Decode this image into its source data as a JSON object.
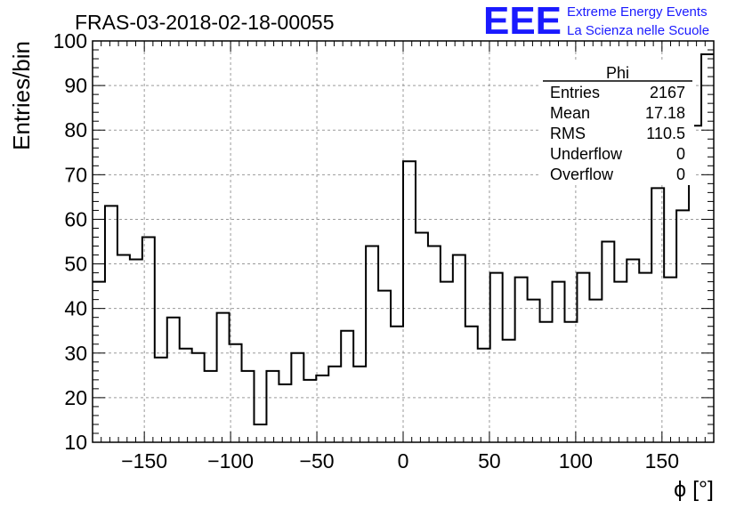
{
  "title": "FRAS-03-2018-02-18-00055",
  "logo": {
    "mark": "EEE",
    "line1": "Extreme Energy Events",
    "line2": "La Scienza nelle Scuole",
    "color": "#1a1aff"
  },
  "stats_box": {
    "name": "Phi",
    "rows": [
      {
        "label": "Entries",
        "value": "2167"
      },
      {
        "label": "Mean",
        "value": "17.18"
      },
      {
        "label": "RMS",
        "value": "110.5"
      },
      {
        "label": "Underflow",
        "value": "0"
      },
      {
        "label": "Overflow",
        "value": "0"
      }
    ]
  },
  "chart_data": {
    "type": "histogram",
    "title": "FRAS-03-2018-02-18-00055",
    "xlabel": "ϕ [°]",
    "ylabel": "Entries/bin",
    "xlim": [
      -180,
      180
    ],
    "ylim": [
      10,
      100
    ],
    "bin_width": 7.2,
    "bin_edges_start": -180,
    "xticks": [
      -150,
      -100,
      -50,
      0,
      50,
      100,
      150
    ],
    "yticks": [
      10,
      20,
      30,
      40,
      50,
      60,
      70,
      80,
      90,
      100
    ],
    "grid": true,
    "values": [
      46,
      63,
      52,
      51,
      56,
      29,
      38,
      31,
      30,
      26,
      39,
      32,
      26,
      14,
      26,
      23,
      30,
      24,
      25,
      27,
      35,
      27,
      54,
      44,
      36,
      73,
      57,
      54,
      46,
      52,
      36,
      31,
      48,
      33,
      47,
      42,
      37,
      46,
      37,
      48,
      42,
      55,
      46,
      51,
      48,
      67,
      47,
      62,
      81,
      97
    ]
  }
}
